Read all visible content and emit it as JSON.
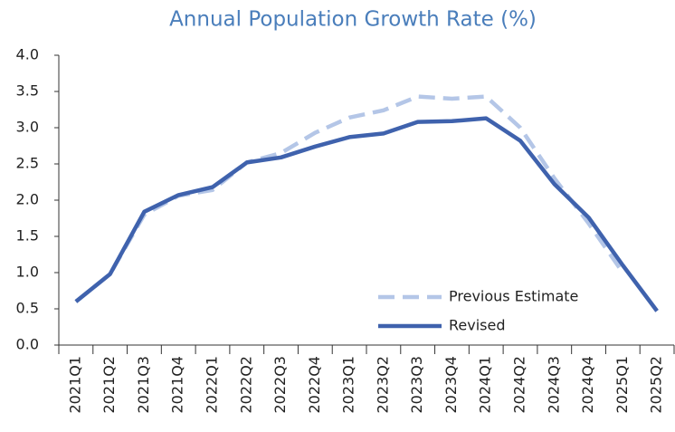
{
  "chart_data": {
    "type": "line",
    "title": "Annual Population Growth Rate (%)",
    "categories": [
      "2021Q1",
      "2021Q2",
      "2021Q3",
      "2021Q4",
      "2022Q1",
      "2022Q2",
      "2022Q3",
      "2022Q4",
      "2023Q1",
      "2023Q2",
      "2023Q3",
      "2023Q4",
      "2024Q1",
      "2024Q2",
      "2024Q3",
      "2024Q4",
      "2025Q1",
      "2025Q2"
    ],
    "series": [
      {
        "name": "Previous Estimate",
        "color": "#b4c6e7",
        "dashed": true,
        "values": [
          0.6,
          0.98,
          1.8,
          2.06,
          2.14,
          2.52,
          2.65,
          2.93,
          3.14,
          3.24,
          3.43,
          3.4,
          3.43,
          3.0,
          2.3,
          1.68,
          1.0,
          null
        ]
      },
      {
        "name": "Revised",
        "color": "#3f62ad",
        "dashed": false,
        "values": [
          0.6,
          0.98,
          1.84,
          2.07,
          2.18,
          2.52,
          2.59,
          2.74,
          2.87,
          2.92,
          3.08,
          3.09,
          3.13,
          2.82,
          2.22,
          1.76,
          1.1,
          0.47
        ]
      }
    ],
    "ylim": [
      0,
      4
    ],
    "yticks": [
      {
        "value": 0,
        "label": "0.0"
      },
      {
        "value": 0.5,
        "label": "0.5"
      },
      {
        "value": 1,
        "label": "1.0"
      },
      {
        "value": 1.5,
        "label": "1.5"
      },
      {
        "value": 2,
        "label": "2.0"
      },
      {
        "value": 2.5,
        "label": "2.5"
      },
      {
        "value": 3,
        "label": "3.0"
      },
      {
        "value": 3.5,
        "label": "3.5"
      },
      {
        "value": 4,
        "label": "4.0"
      }
    ],
    "grid": false,
    "legend": "lower right"
  }
}
